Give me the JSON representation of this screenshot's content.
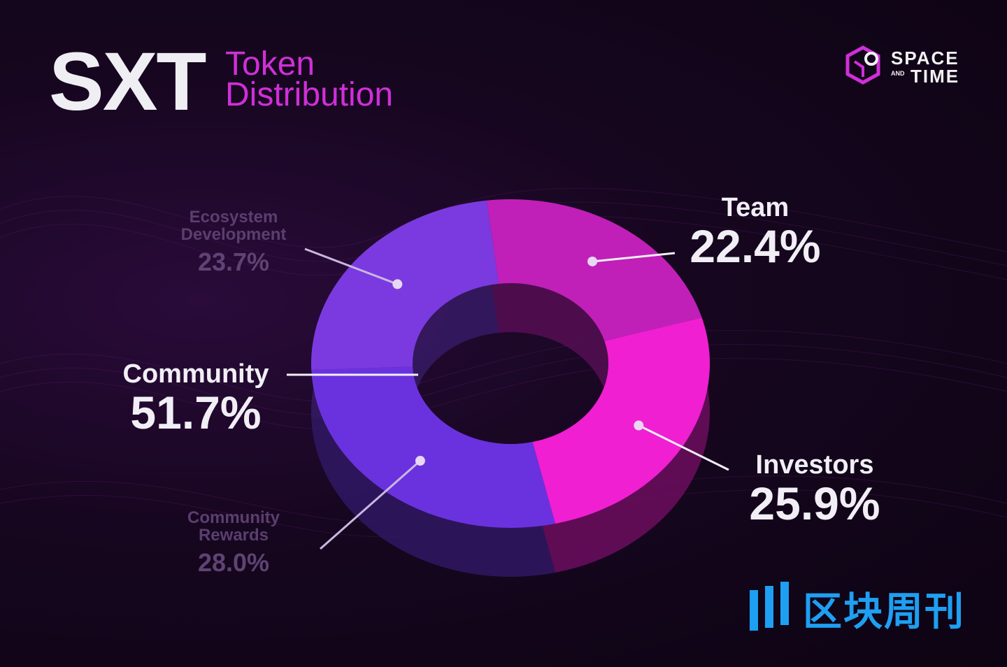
{
  "header": {
    "title_main": "SXT",
    "title_sub_line1": "Token",
    "title_sub_line2": "Distribution"
  },
  "logo": {
    "line1": "SPACE",
    "and": "AND",
    "line2": "TIME",
    "icon": "hexagon-logo-icon",
    "color": "#d02fd8"
  },
  "watermark": {
    "text": "区块周刊",
    "icon": "bar-logo-icon",
    "color": "#1e9ff2"
  },
  "chart_data": {
    "type": "pie",
    "style": "3d-donut",
    "title": "SXT Token Distribution",
    "slices": [
      {
        "name": "Team",
        "value": 22.4,
        "label": "22.4%",
        "color": "#c020b8"
      },
      {
        "name": "Investors",
        "value": 25.9,
        "label": "25.9%",
        "color": "#f01fd2"
      },
      {
        "name": "Community Rewards",
        "value": 28.0,
        "label": "28.0%",
        "color": "#6a32de"
      },
      {
        "name": "Ecosystem Development",
        "value": 23.7,
        "label": "23.7%",
        "color": "#7b3ae0"
      }
    ],
    "groups": [
      {
        "name": "Community",
        "value": 51.7,
        "label": "51.7%",
        "members": [
          "Community Rewards",
          "Ecosystem Development"
        ]
      }
    ]
  },
  "labels": {
    "team_name": "Team",
    "team_value": "22.4%",
    "investors_name": "Investors",
    "investors_value": "25.9%",
    "community_name": "Community",
    "community_value": "51.7%",
    "eco_name_line1": "Ecosystem",
    "eco_name_line2": "Development",
    "eco_value": "23.7%",
    "rewards_name_line1": "Community",
    "rewards_name_line2": "Rewards",
    "rewards_value": "28.0%"
  }
}
